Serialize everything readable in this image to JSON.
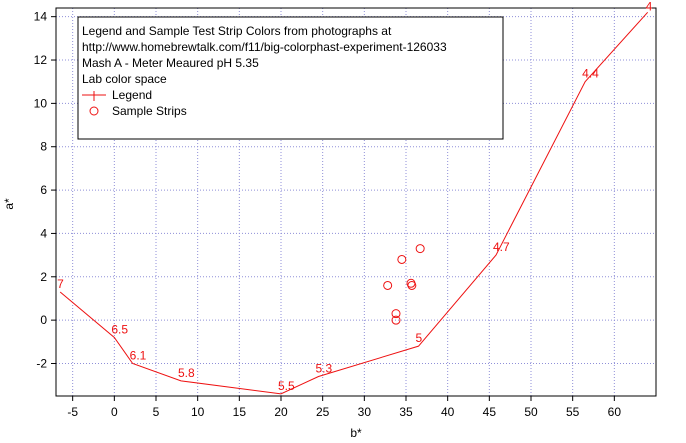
{
  "chart_data": {
    "type": "line",
    "xlabel": "b*",
    "ylabel": "a*",
    "xlim": [
      -7,
      65
    ],
    "ylim": [
      -3.5,
      14.4
    ],
    "x_ticks": [
      -5,
      0,
      5,
      10,
      15,
      20,
      25,
      30,
      35,
      40,
      45,
      50,
      55,
      60
    ],
    "y_ticks": [
      -2,
      0,
      2,
      4,
      6,
      8,
      10,
      12,
      14
    ],
    "grid": true,
    "legend_placement": "top-left",
    "legend_lines": [
      "Legend and Sample Test Strip Colors from photographs at",
      "http://www.homebrewtalk.com/f11/big-colorphast-experiment-126033",
      "Mash A - Meter Meaured pH 5.35",
      "Lab color space"
    ],
    "series": [
      {
        "name": "Legend",
        "style": "line",
        "color": "#ee1111",
        "points": [
          {
            "x": -6.5,
            "y": 1.3,
            "label": "7"
          },
          {
            "x": 0.0,
            "y": -0.8,
            "label": "6.5"
          },
          {
            "x": 2.2,
            "y": -2.0,
            "label": "6.1"
          },
          {
            "x": 8.0,
            "y": -2.8,
            "label": "5.8"
          },
          {
            "x": 20.0,
            "y": -3.4,
            "label": "5.5"
          },
          {
            "x": 24.5,
            "y": -2.6,
            "label": "5.3"
          },
          {
            "x": 36.5,
            "y": -1.2,
            "label": "5"
          },
          {
            "x": 45.8,
            "y": 3.0,
            "label": "4.7"
          },
          {
            "x": 56.5,
            "y": 11.0,
            "label": "4.4"
          },
          {
            "x": 64.0,
            "y": 14.2,
            "label": "4"
          }
        ]
      },
      {
        "name": "Sample Strips",
        "style": "markers",
        "color": "#ee1111",
        "points": [
          {
            "x": 32.8,
            "y": 1.6
          },
          {
            "x": 34.5,
            "y": 2.8
          },
          {
            "x": 36.7,
            "y": 3.3
          },
          {
            "x": 35.6,
            "y": 1.7
          },
          {
            "x": 35.7,
            "y": 1.6
          },
          {
            "x": 33.8,
            "y": 0.3
          },
          {
            "x": 33.8,
            "y": 0.0
          }
        ]
      }
    ]
  }
}
